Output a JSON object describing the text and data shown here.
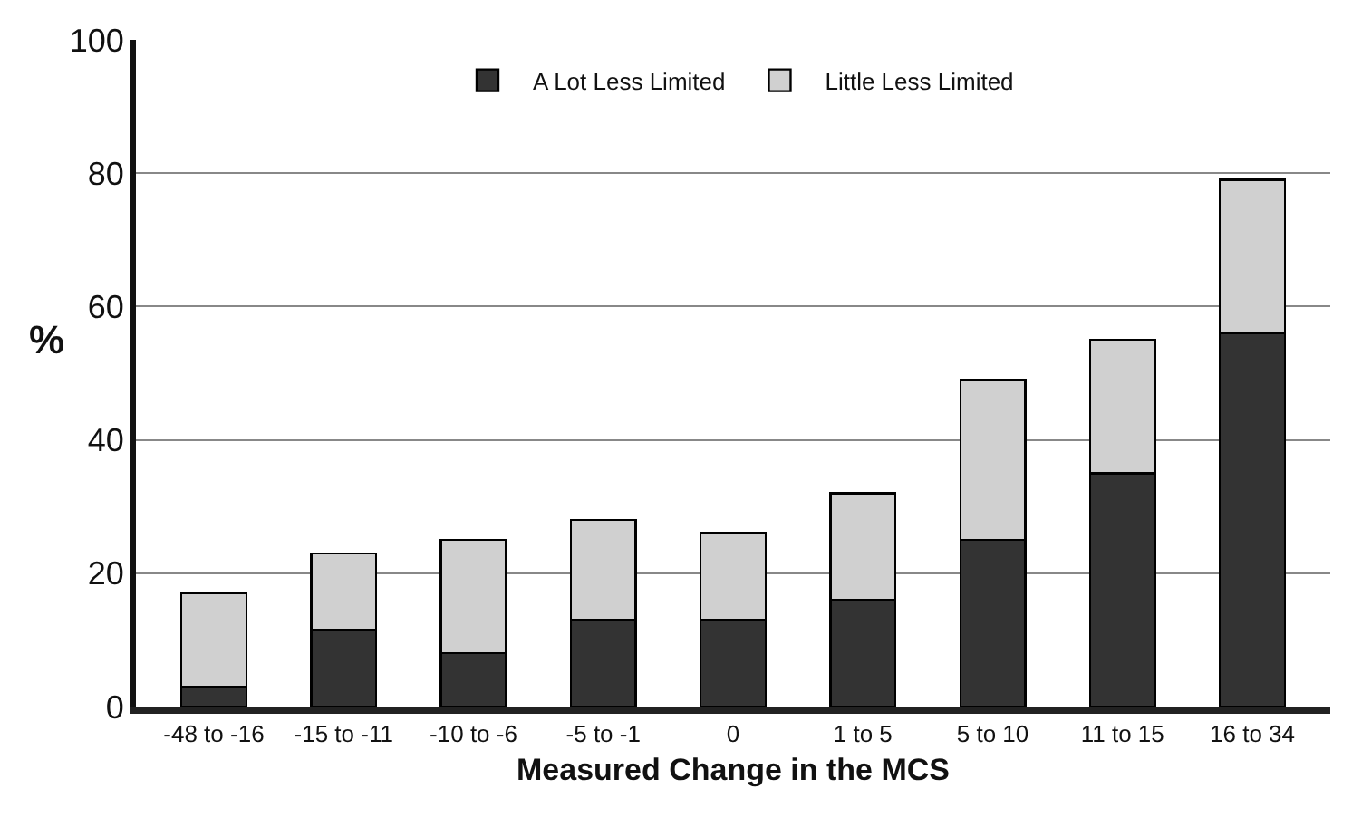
{
  "chart_data": {
    "type": "bar",
    "stacked": true,
    "xlabel": "Measured Change in the MCS",
    "ylabel": "%",
    "categories": [
      "-48 to -16",
      "-15 to -11",
      "-10 to -6",
      "-5 to -1",
      "0",
      "1 to 5",
      "5 to 10",
      "11 to 15",
      "16 to 34"
    ],
    "series": [
      {
        "name": "A Lot Less Limited",
        "color": "#333333",
        "values": [
          3,
          11.5,
          8,
          13,
          13,
          16,
          25,
          35,
          56
        ]
      },
      {
        "name": "Little Less Limited",
        "color": "#d0d0d0",
        "values": [
          14,
          11.5,
          17,
          15,
          13,
          16,
          24,
          20,
          23
        ]
      }
    ],
    "ylim": [
      0,
      100
    ],
    "yticks": [
      0,
      20,
      40,
      60,
      80,
      100
    ],
    "grid": "y",
    "legend": "top"
  }
}
